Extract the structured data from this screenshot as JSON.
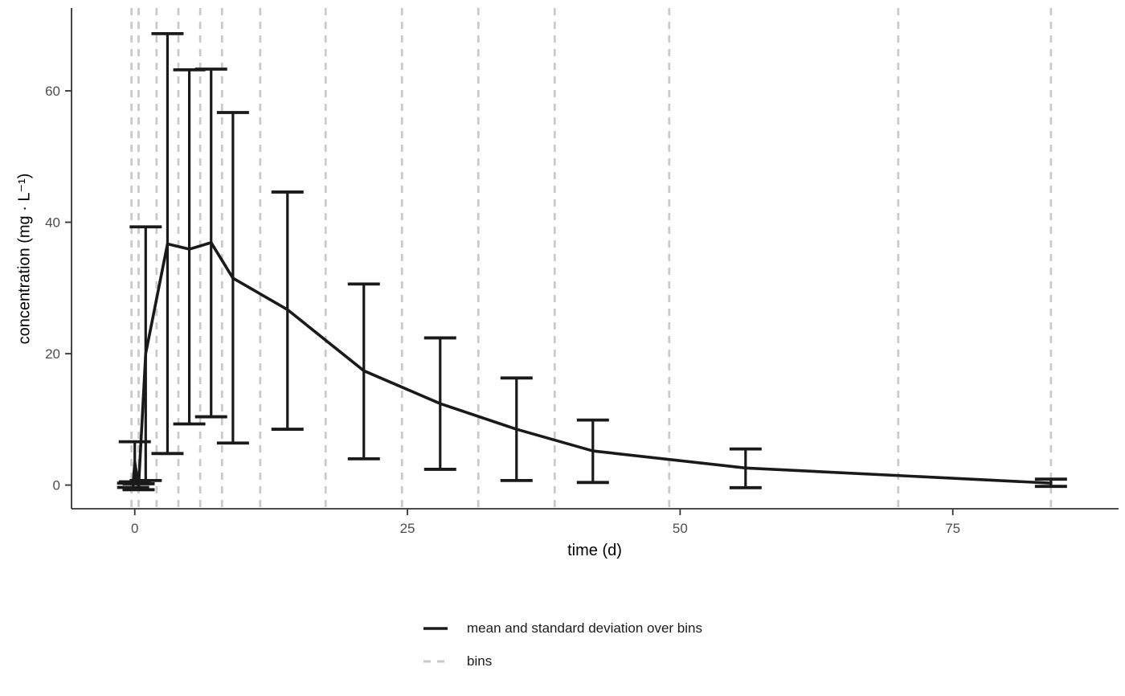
{
  "figure": {
    "x_axis_title": "time (d)",
    "y_axis_title": "concentration (mg · L⁻¹)"
  },
  "legend": {
    "items": [
      {
        "label": "mean and standard deviation over bins",
        "swatch": "solid-black-line"
      },
      {
        "label": "bins",
        "swatch": "dashed-gray-line"
      }
    ]
  },
  "colors": {
    "mean_line": "#1a1a1a",
    "error_bar": "#1a1a1a",
    "bins_line": "#c9c9c9",
    "axis_line": "#333333",
    "tick_label": "#4d4d4d",
    "axis_title": "#000000",
    "background": "#ffffff"
  },
  "chart_data": {
    "type": "line",
    "title": "",
    "xlabel": "time (d)",
    "ylabel": "concentration (mg · L⁻¹)",
    "xlim": [
      -5.8,
      90.2
    ],
    "ylim": [
      -3.6,
      72.6
    ],
    "x_ticks": [
      0,
      25,
      50,
      75
    ],
    "y_ticks": [
      0,
      20,
      40,
      60
    ],
    "grid": false,
    "legend_position": "bottom",
    "series": [
      {
        "name": "mean and standard deviation over bins",
        "style": "solid black line with T-capped error bars (mean ± sd)",
        "points": [
          {
            "t": -0.15,
            "mean": 0.0,
            "lower": -0.35,
            "upper": 0.3
          },
          {
            "t": 0.0,
            "mean": 3.5,
            "lower": 0.5,
            "upper": 6.6
          },
          {
            "t": 0.35,
            "mean": -0.2,
            "lower": -0.7,
            "upper": 0.2
          },
          {
            "t": 1,
            "mean": 20.0,
            "lower": 0.7,
            "upper": 39.3
          },
          {
            "t": 3,
            "mean": 36.7,
            "lower": 4.8,
            "upper": 68.7
          },
          {
            "t": 5,
            "mean": 35.9,
            "lower": 9.3,
            "upper": 63.2
          },
          {
            "t": 7,
            "mean": 36.9,
            "lower": 10.4,
            "upper": 63.3
          },
          {
            "t": 9,
            "mean": 31.5,
            "lower": 6.4,
            "upper": 56.7
          },
          {
            "t": 14,
            "mean": 26.7,
            "lower": 8.5,
            "upper": 44.6
          },
          {
            "t": 21,
            "mean": 17.4,
            "lower": 4.0,
            "upper": 30.6
          },
          {
            "t": 28,
            "mean": 12.4,
            "lower": 2.4,
            "upper": 22.4
          },
          {
            "t": 35,
            "mean": 8.5,
            "lower": 0.7,
            "upper": 16.3
          },
          {
            "t": 42,
            "mean": 5.2,
            "lower": 0.4,
            "upper": 9.9
          },
          {
            "t": 56,
            "mean": 2.6,
            "lower": -0.4,
            "upper": 5.5
          },
          {
            "t": 84,
            "mean": 0.3,
            "lower": -0.2,
            "upper": 0.9
          }
        ]
      },
      {
        "name": "bins",
        "style": "vertical dashed light-gray lines",
        "x_values": [
          -0.3,
          0.35,
          2,
          4,
          6,
          8,
          11.5,
          17.5,
          24.5,
          31.5,
          38.5,
          49,
          70,
          84
        ]
      }
    ]
  }
}
